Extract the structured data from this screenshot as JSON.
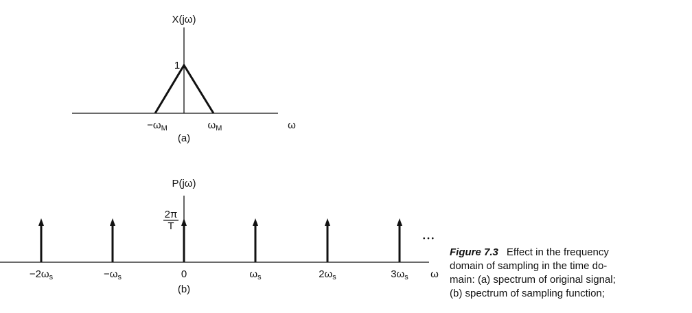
{
  "panel_a": {
    "y_label": "X(jω)",
    "peak_label": "1",
    "x_labels": [
      {
        "main": "−ω",
        "sub": "M"
      },
      {
        "main": "ω",
        "sub": "M"
      }
    ],
    "axis_label": "ω",
    "caption": "(a)"
  },
  "panel_b": {
    "y_label": "P(jω)",
    "height_label": {
      "numerator": "2π",
      "denominator": "T"
    },
    "x_labels": [
      {
        "main": "−2ω",
        "sub": "s"
      },
      {
        "main": "−ω",
        "sub": "s"
      },
      {
        "main": "0",
        "sub": null
      },
      {
        "main": "ω",
        "sub": "s"
      },
      {
        "main": "2ω",
        "sub": "s"
      },
      {
        "main": "3ω",
        "sub": "s"
      }
    ],
    "ellipsis": "• • •",
    "axis_label": "ω",
    "caption": "(b)"
  },
  "figure_caption": {
    "label": "Figure 7.3",
    "lines": [
      "Effect in the frequency",
      "domain of sampling in the time do-",
      "main: (a) spectrum of original signal;",
      "(b) spectrum of sampling function;"
    ]
  }
}
